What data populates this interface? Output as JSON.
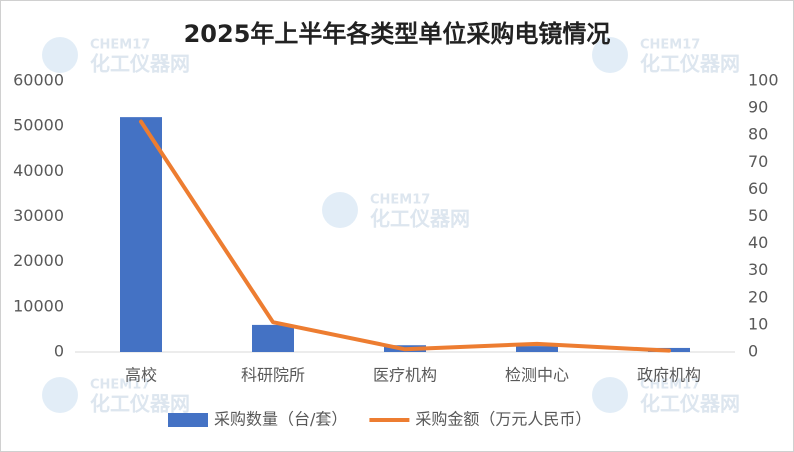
{
  "chart_data": {
    "type": "bar",
    "title": "2025年上半年各类型单位采购电镜情况",
    "categories": [
      "高校",
      "科研院所",
      "医疗机构",
      "检测中心",
      "政府机构"
    ],
    "series": [
      {
        "name": "采购数量（台/套）",
        "color": "#4472c4",
        "type": "bar",
        "values": [
          52000,
          6000,
          1500,
          1300,
          900
        ]
      },
      {
        "name": "采购金额（万元人民币）",
        "color": "#ed7d31",
        "type": "line",
        "axis": "y2",
        "values": [
          85,
          11,
          1,
          3,
          0.5
        ]
      }
    ],
    "ylim": [
      0,
      60000
    ],
    "yticks": [
      0,
      10000,
      20000,
      30000,
      40000,
      50000,
      60000
    ],
    "y2lim": [
      0,
      100
    ],
    "y2ticks": [
      0,
      10,
      20,
      30,
      40,
      50,
      60,
      70,
      80,
      90,
      100
    ],
    "grid": false,
    "legend": "bottom",
    "watermark": [
      "CHEM17",
      "化工仪器网"
    ]
  }
}
